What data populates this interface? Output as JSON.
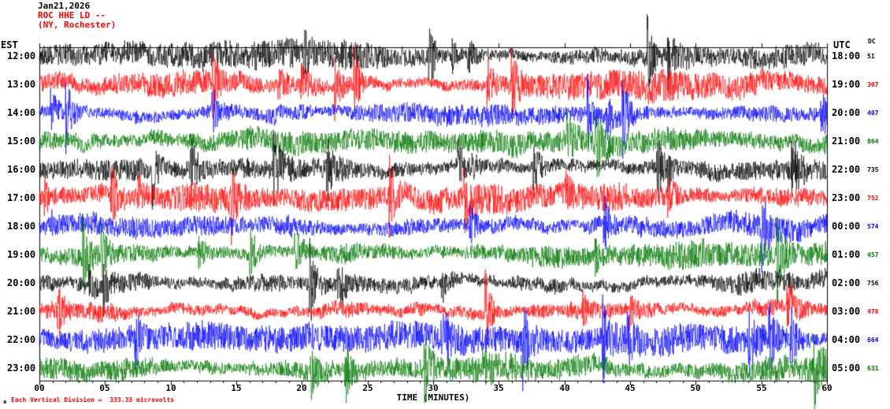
{
  "header": {
    "date": "Jan21,2026",
    "station": "ROC HHE LD --",
    "location": "(NY, Rochester)"
  },
  "axes": {
    "left_label": "EST",
    "right_label": "UTC",
    "dc_label": "DC",
    "x_label": "TIME (MINUTES)",
    "x_ticks": [
      "00",
      "05",
      "10",
      "15",
      "20",
      "25",
      "30",
      "35",
      "40",
      "45",
      "50",
      "55",
      "60"
    ]
  },
  "footer": {
    "watermark": "a",
    "scale_note": "Each Vertical Division =  333.33 microvolts"
  },
  "colors": {
    "black": "#000000",
    "red": "#ff0000",
    "blue": "#0000ff",
    "green": "#007700",
    "header_red": "#ff0000"
  },
  "chart_data": {
    "type": "line",
    "subtype": "helicorder-seismogram",
    "title": "ROC HHE LD -- (NY, Rochester) Jan21,2026",
    "xlabel": "TIME (MINUTES)",
    "x_range_minutes": [
      0,
      60
    ],
    "minutes_per_row": 60,
    "tick_interval_minutes": 5,
    "vertical_division_microvolts": 333.33,
    "waveform_note": "dense ambient seismic noise with intermittent spike events; traces regenerated procedurally",
    "rows": [
      {
        "est": "12:00",
        "utc": "18:00",
        "dc": 51,
        "color": "#000000",
        "amp": 10,
        "seed": 101
      },
      {
        "est": "13:00",
        "utc": "19:00",
        "dc": 307,
        "color": "#ff0000",
        "amp": 11,
        "seed": 202
      },
      {
        "est": "14:00",
        "utc": "20:00",
        "dc": 407,
        "color": "#0000ff",
        "amp": 10,
        "seed": 303
      },
      {
        "est": "15:00",
        "utc": "21:00",
        "dc": 864,
        "color": "#007700",
        "amp": 13,
        "seed": 404
      },
      {
        "est": "16:00",
        "utc": "22:00",
        "dc": 735,
        "color": "#000000",
        "amp": 11,
        "seed": 505
      },
      {
        "est": "17:00",
        "utc": "23:00",
        "dc": 752,
        "color": "#ff0000",
        "amp": 11,
        "seed": 606
      },
      {
        "est": "18:00",
        "utc": "00:00",
        "dc": 574,
        "color": "#0000ff",
        "amp": 10,
        "seed": 707
      },
      {
        "est": "19:00",
        "utc": "01:00",
        "dc": 457,
        "color": "#007700",
        "amp": 10,
        "seed": 808
      },
      {
        "est": "20:00",
        "utc": "02:00",
        "dc": 756,
        "color": "#000000",
        "amp": 11,
        "seed": 909
      },
      {
        "est": "21:00",
        "utc": "03:00",
        "dc": 478,
        "color": "#ff0000",
        "amp": 10,
        "seed": 1010
      },
      {
        "est": "22:00",
        "utc": "04:00",
        "dc": 664,
        "color": "#0000ff",
        "amp": 10,
        "seed": 1111
      },
      {
        "est": "23:00",
        "utc": "05:00",
        "dc": 631,
        "color": "#007700",
        "amp": 12,
        "seed": 1212
      }
    ]
  }
}
